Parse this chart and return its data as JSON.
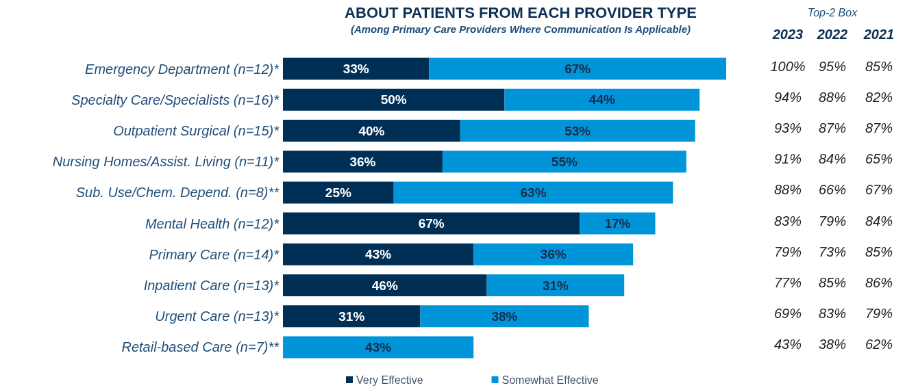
{
  "chart_data": {
    "type": "bar",
    "orientation": "horizontal",
    "stacked": true,
    "title": "ABOUT PATIENTS FROM EACH PROVIDER TYPE",
    "subtitle": "(Among Primary Care Providers Where Communication Is Applicable)",
    "categories": [
      "Emergency Department (n=12)*",
      "Specialty Care/Specialists (n=16)*",
      "Outpatient Surgical (n=15)*",
      "Nursing Homes/Assist. Living (n=11)*",
      "Sub. Use/Chem. Depend. (n=8)**",
      "Mental Health (n=12)*",
      "Primary Care (n=14)*",
      "Inpatient Care (n=13)*",
      "Urgent Care (n=13)*",
      "Retail-based Care (n=7)**"
    ],
    "series": [
      {
        "name": "Very Effective",
        "color": "#002f56",
        "values": [
          33,
          50,
          40,
          36,
          25,
          67,
          43,
          46,
          31,
          0
        ],
        "value_labels": [
          "33%",
          "50%",
          "40%",
          "36%",
          "25%",
          "67%",
          "43%",
          "46%",
          "31%",
          null
        ]
      },
      {
        "name": "Somewhat Effective",
        "color": "#0095d9",
        "values": [
          67,
          44,
          53,
          55,
          63,
          17,
          36,
          31,
          38,
          43
        ],
        "value_labels": [
          "67%",
          "44%",
          "53%",
          "55%",
          "63%",
          "17%",
          "36%",
          "31%",
          "38%",
          "43%"
        ]
      }
    ],
    "legend": "bottom",
    "tick_labels": "y",
    "annotations": [
      "Top-2 Box",
      "2023",
      "2022",
      "2021",
      "100%",
      "95%",
      "85%",
      "94%",
      "88%",
      "82%",
      "93%",
      "87%",
      "87%",
      "91%",
      "84%",
      "65%",
      "88%",
      "66%",
      "67%",
      "83%",
      "79%",
      "84%",
      "79%",
      "73%",
      "85%",
      "77%",
      "85%",
      "86%",
      "69%",
      "83%",
      "79%",
      "43%",
      "38%",
      "62%"
    ]
  }
}
